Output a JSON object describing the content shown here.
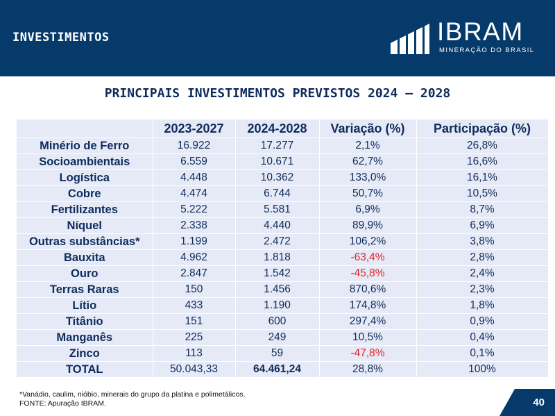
{
  "header": {
    "section_title": "INVESTIMENTOS",
    "logo_name": "IBRAM",
    "logo_subtitle": "MINERAÇÃO DO BRASIL"
  },
  "colors": {
    "header_bg": "#063a6b",
    "table_bg": "#e6eaf6",
    "text_navy": "#0d2b5c",
    "negative": "#e02626"
  },
  "main_title": "PRINCIPAIS INVESTIMENTOS PREVISTOS 2024 – 2028",
  "table": {
    "headers": [
      "",
      "2023-2027",
      "2024-2028",
      "Variação (%)",
      "Participação (%)"
    ],
    "rows": [
      {
        "label": "Minério de Ferro",
        "v2023": "16.922",
        "v2024": "17.277",
        "variation": "2,1%",
        "share": "26,8%",
        "negative": false
      },
      {
        "label": "Socioambientais",
        "v2023": "6.559",
        "v2024": "10.671",
        "variation": "62,7%",
        "share": "16,6%",
        "negative": false
      },
      {
        "label": "Logística",
        "v2023": "4.448",
        "v2024": "10.362",
        "variation": "133,0%",
        "share": "16,1%",
        "negative": false
      },
      {
        "label": "Cobre",
        "v2023": "4.474",
        "v2024": "6.744",
        "variation": "50,7%",
        "share": "10,5%",
        "negative": false
      },
      {
        "label": "Fertilizantes",
        "v2023": "5.222",
        "v2024": "5.581",
        "variation": "6,9%",
        "share": "8,7%",
        "negative": false
      },
      {
        "label": "Níquel",
        "v2023": "2.338",
        "v2024": "4.440",
        "variation": "89,9%",
        "share": "6,9%",
        "negative": false
      },
      {
        "label": "Outras substâncias*",
        "v2023": "1.199",
        "v2024": "2.472",
        "variation": "106,2%",
        "share": "3,8%",
        "negative": false
      },
      {
        "label": "Bauxita",
        "v2023": "4.962",
        "v2024": "1.818",
        "variation": "-63,4%",
        "share": "2,8%",
        "negative": true
      },
      {
        "label": "Ouro",
        "v2023": "2.847",
        "v2024": "1.542",
        "variation": "-45,8%",
        "share": "2,4%",
        "negative": true
      },
      {
        "label": "Terras Raras",
        "v2023": "150",
        "v2024": "1.456",
        "variation": "870,6%",
        "share": "2,3%",
        "negative": false
      },
      {
        "label": "Lítio",
        "v2023": "433",
        "v2024": "1.190",
        "variation": "174,8%",
        "share": "1,8%",
        "negative": false
      },
      {
        "label": "Titânio",
        "v2023": "151",
        "v2024": "600",
        "variation": "297,4%",
        "share": "0,9%",
        "negative": false
      },
      {
        "label": "Manganês",
        "v2023": "225",
        "v2024": "249",
        "variation": "10,5%",
        "share": "0,4%",
        "negative": false
      },
      {
        "label": "Zinco",
        "v2023": "113",
        "v2024": "59",
        "variation": "-47,8%",
        "share": "0,1%",
        "negative": true
      }
    ],
    "total": {
      "label": "TOTAL",
      "v2023": "50.043,33",
      "v2024": "64.461,24",
      "variation": "28,8%",
      "share": "100%"
    }
  },
  "footnote": {
    "line1": "*Vanádio, caulim, nióbio, minerais do grupo da platina e polimetálicos.",
    "line2": "FONTE: Apuração IBRAM."
  },
  "page_number": "40"
}
